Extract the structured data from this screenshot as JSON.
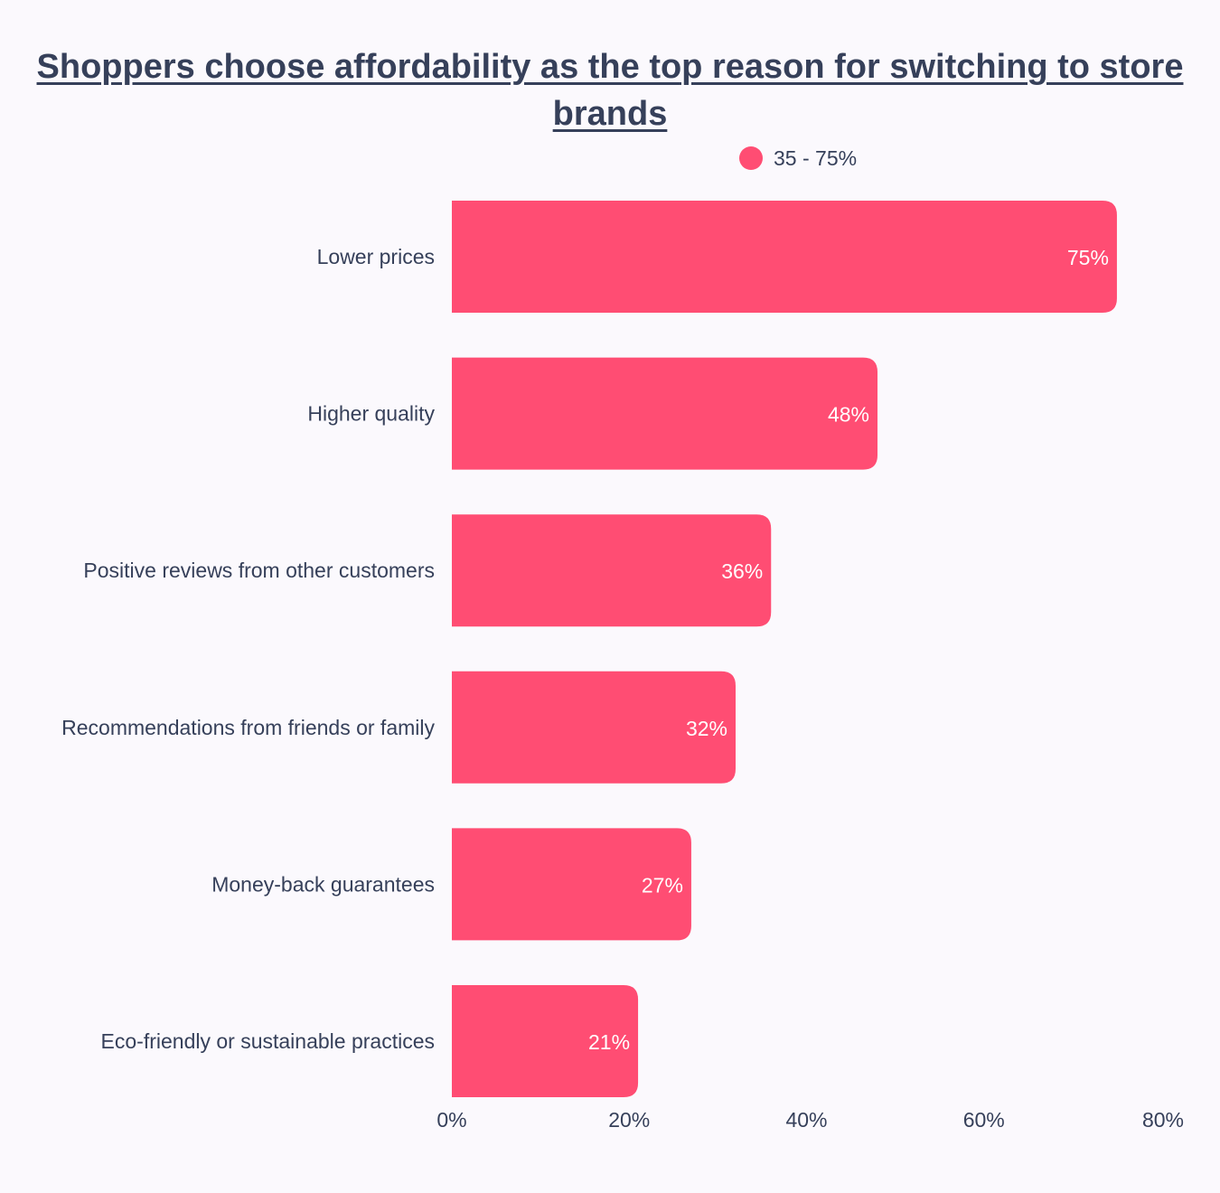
{
  "colors": {
    "bar": "#ff4d73",
    "text": "#36405a",
    "background": "#fbf9fd",
    "value_label": "#ffffff"
  },
  "chart_data": {
    "type": "bar",
    "orientation": "horizontal",
    "title": "Shoppers choose affordability as the top reason for switching to store brands",
    "legend": {
      "position": "top",
      "entries": [
        "35 - 75%"
      ]
    },
    "categories": [
      "Lower prices",
      "Higher quality",
      "Positive reviews from other customers",
      "Recommendations from friends or family",
      "Money-back guarantees",
      "Eco-friendly or sustainable practices"
    ],
    "values": [
      75,
      48,
      36,
      32,
      27,
      21
    ],
    "value_labels": [
      "75%",
      "48%",
      "36%",
      "32%",
      "27%",
      "21%"
    ],
    "xlim": [
      0,
      80
    ],
    "xticks": [
      0,
      20,
      40,
      60,
      80
    ],
    "xtick_labels": [
      "0%",
      "20%",
      "40%",
      "60%",
      "80%"
    ],
    "grid": false
  }
}
